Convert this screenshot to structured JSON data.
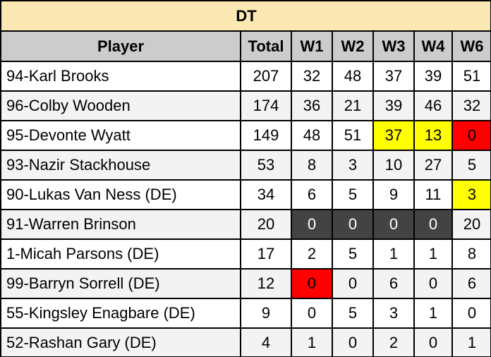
{
  "title": "DT",
  "table": {
    "columns": [
      "Player",
      "Total",
      "W1",
      "W2",
      "W3",
      "W4",
      "W6"
    ],
    "rows": [
      [
        "94-Karl Brooks",
        207,
        32,
        48,
        37,
        39,
        51
      ],
      [
        "96-Colby Wooden",
        174,
        36,
        21,
        39,
        46,
        32
      ],
      [
        "95-Devonte Wyatt",
        149,
        48,
        51,
        37,
        13,
        0
      ],
      [
        "93-Nazir Stackhouse",
        53,
        8,
        3,
        10,
        27,
        5
      ],
      [
        "90-Lukas Van Ness (DE)",
        34,
        6,
        5,
        9,
        11,
        3
      ],
      [
        "91-Warren Brinson",
        20,
        0,
        0,
        0,
        0,
        20
      ],
      [
        "1-Micah Parsons (DE)",
        17,
        2,
        5,
        1,
        1,
        8
      ],
      [
        "99-Barryn Sorrell (DE)",
        12,
        0,
        0,
        6,
        0,
        6
      ],
      [
        "55-Kingsley Enagbare (DE)",
        9,
        0,
        5,
        3,
        1,
        0
      ],
      [
        "52-Rashan Gary (DE)",
        4,
        1,
        0,
        2,
        0,
        1
      ]
    ]
  }
}
